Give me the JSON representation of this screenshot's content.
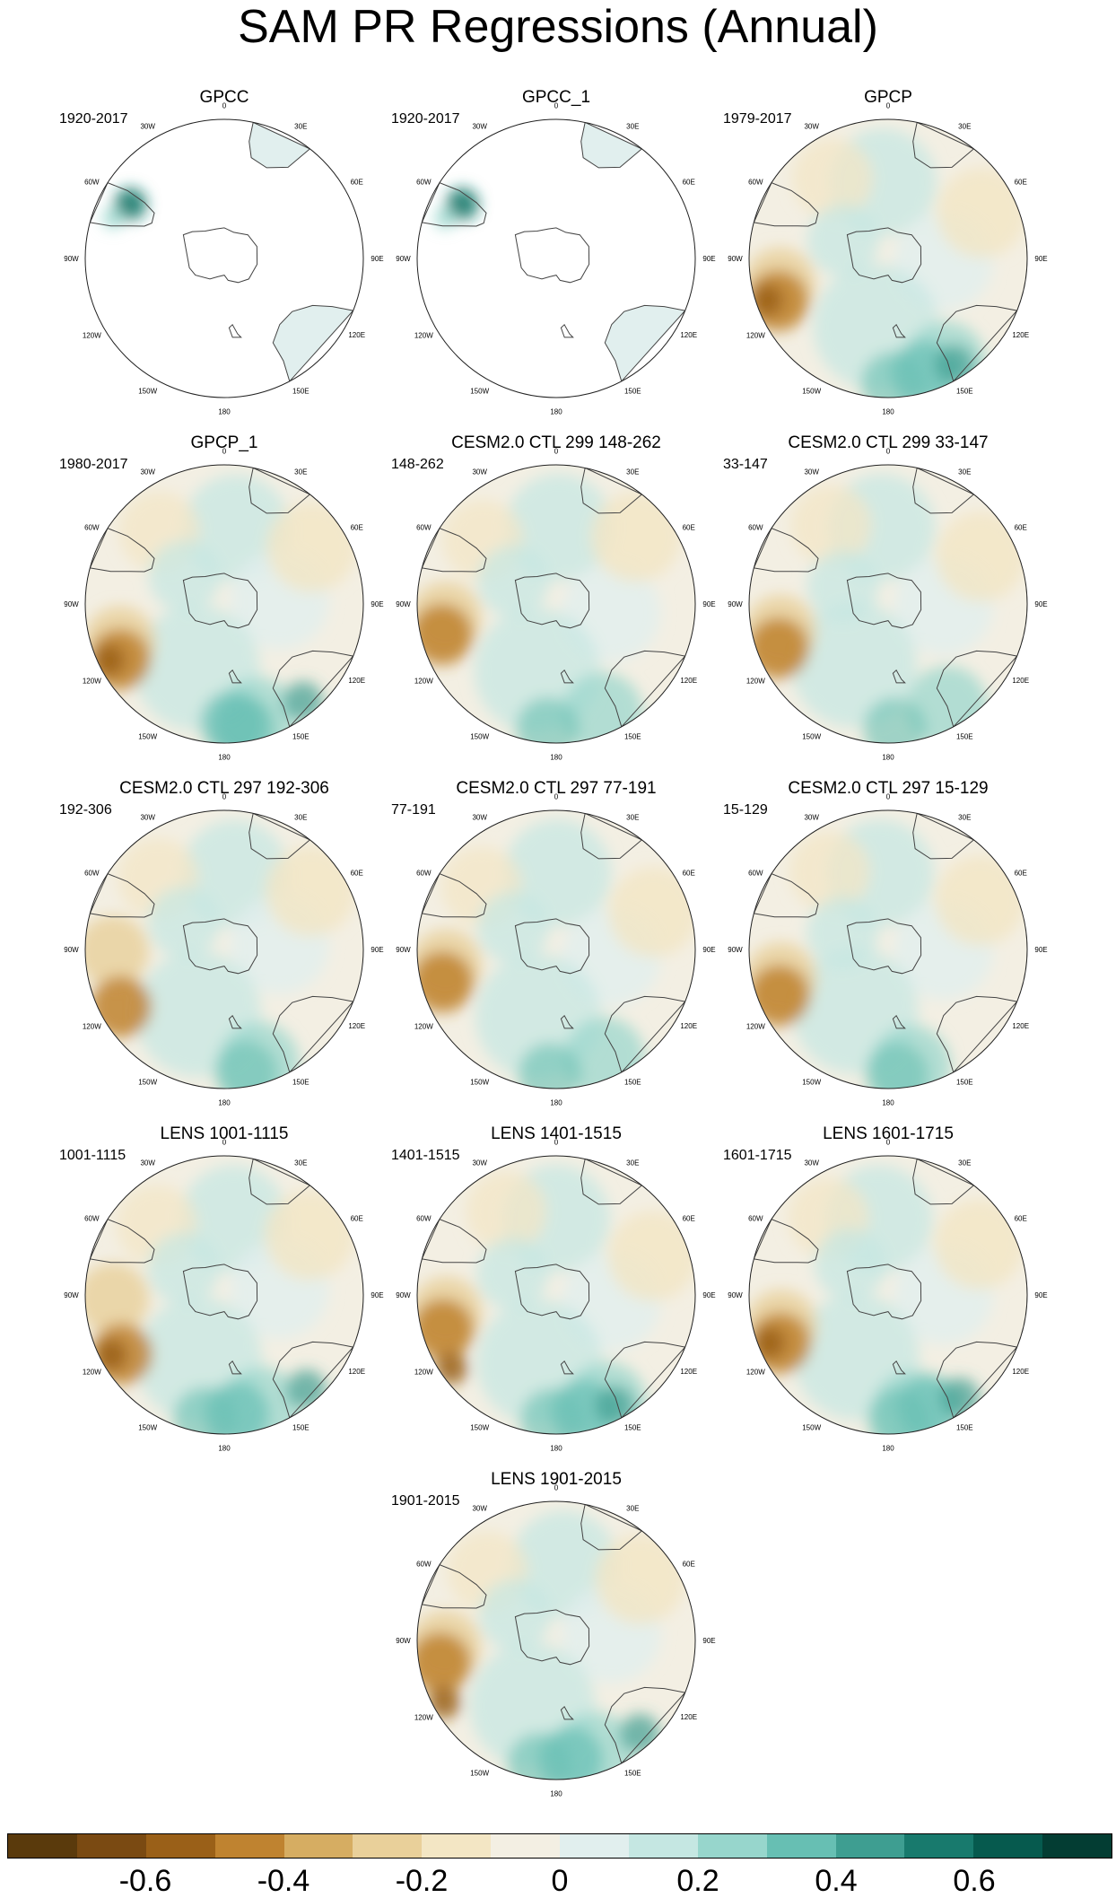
{
  "figure": {
    "title": "SAM PR Regressions (Annual)"
  },
  "map_labels": [
    "0",
    "30E",
    "60E",
    "90E",
    "120E",
    "150E",
    "180",
    "150W",
    "120W",
    "90W",
    "60W",
    "30W"
  ],
  "panels": [
    {
      "title": "GPCC",
      "period": "1920-2017",
      "coverage": "land"
    },
    {
      "title": "GPCC_1",
      "period": "1920-2017",
      "coverage": "land"
    },
    {
      "title": "GPCP",
      "period": "1979-2017",
      "coverage": "full"
    },
    {
      "title": "GPCP_1",
      "period": "1980-2017",
      "coverage": "full"
    },
    {
      "title": "CESM2.0 CTL 299 148-262",
      "period": "148-262",
      "coverage": "full"
    },
    {
      "title": "CESM2.0 CTL 299 33-147",
      "period": "33-147",
      "coverage": "full"
    },
    {
      "title": "CESM2.0 CTL 297 192-306",
      "period": "192-306",
      "coverage": "full"
    },
    {
      "title": "CESM2.0 CTL 297 77-191",
      "period": "77-191",
      "coverage": "full"
    },
    {
      "title": "CESM2.0 CTL 297 15-129",
      "period": "15-129",
      "coverage": "full"
    },
    {
      "title": "LENS 1001-1115",
      "period": "1001-1115",
      "coverage": "full"
    },
    {
      "title": "LENS 1401-1515",
      "period": "1401-1515",
      "coverage": "full"
    },
    {
      "title": "LENS 1601-1715",
      "period": "1601-1715",
      "coverage": "full"
    },
    {
      "title": "LENS 1901-2015",
      "period": "1901-2015",
      "coverage": "full"
    }
  ],
  "colorbar": {
    "colors": [
      "#5a3a0c",
      "#7a4a12",
      "#9a6018",
      "#bf8330",
      "#d6ad62",
      "#e9d09a",
      "#f3e6c4",
      "#f3efe3",
      "#e1efee",
      "#c5e7e2",
      "#97d6cc",
      "#67bfb3",
      "#3e9e91",
      "#187a6d",
      "#065a4e",
      "#033d33"
    ],
    "tick_labels": [
      "-0.6",
      "-0.4",
      "-0.2",
      "0",
      "0.2",
      "0.4",
      "0.6"
    ],
    "tick_values": [
      -0.6,
      -0.4,
      -0.2,
      0,
      0.2,
      0.4,
      0.6
    ],
    "min": -0.8,
    "max": 0.8
  }
}
